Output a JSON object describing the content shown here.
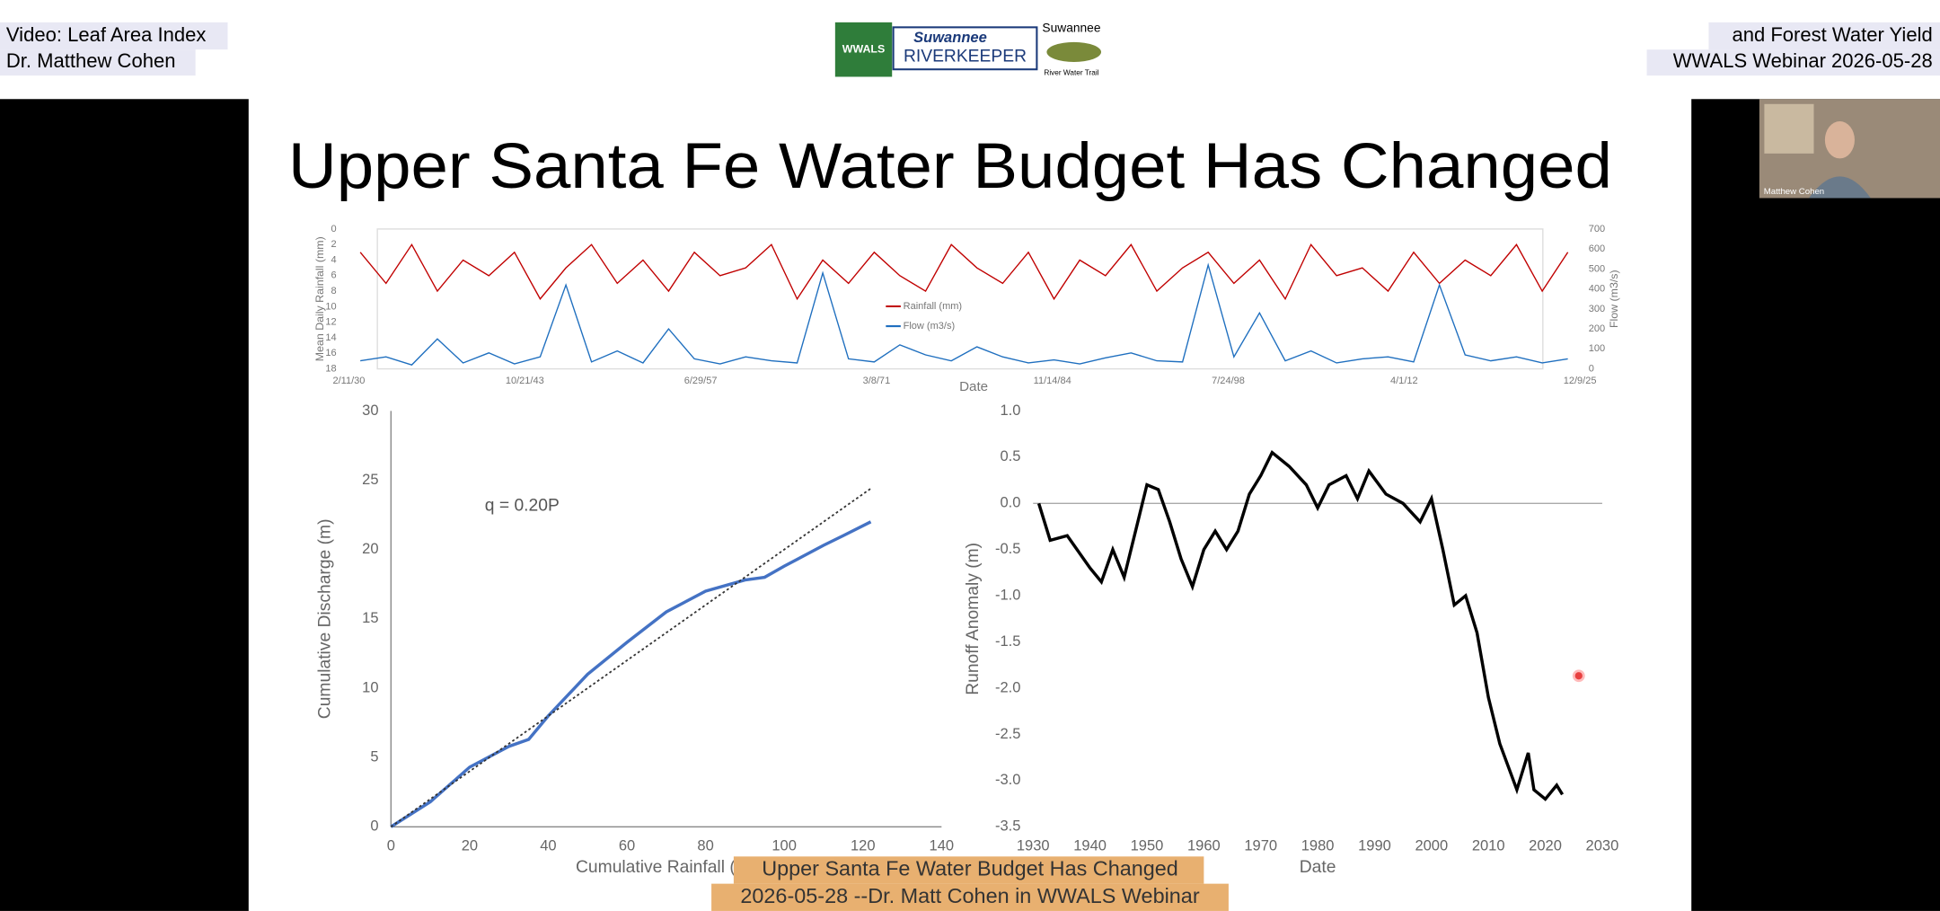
{
  "header": {
    "left": [
      "Video: Leaf Area Index",
      "Dr. Matthew Cohen"
    ],
    "right": [
      "and Forest Water Yield",
      "WWALS Webinar 2026-05-28"
    ],
    "logos": [
      "WWALS",
      "Suwannee",
      "RIVERKEEPER",
      "Suwannee",
      "River Water Trail"
    ]
  },
  "webcam": {
    "name": "Matthew Cohen"
  },
  "slide": {
    "title": "Upper Santa Fe Water Budget Has Changed"
  },
  "caption": [
    "Upper Santa Fe Water Budget Has Changed",
    "2026-05-28 --Dr. Matt Cohen in WWALS Webinar"
  ],
  "chart_data": [
    {
      "type": "line",
      "x_label": "Date",
      "y_label": "Mean Daily Rainfall (mm)",
      "y2_label": "Flow (m3/s)",
      "legend": "center",
      "x": [
        1931,
        1933,
        1935,
        1937,
        1939,
        1941,
        1943,
        1945,
        1947,
        1949,
        1951,
        1953,
        1955,
        1957,
        1959,
        1961,
        1963,
        1965,
        1967,
        1969,
        1971,
        1973,
        1975,
        1977,
        1979,
        1981,
        1983,
        1985,
        1987,
        1989,
        1991,
        1993,
        1995,
        1997,
        1999,
        2001,
        2003,
        2005,
        2007,
        2009,
        2011,
        2013,
        2015,
        2017,
        2019,
        2021,
        2023,
        2025
      ],
      "xlim": [
        1930.11,
        2025.94
      ],
      "xticks": [
        {
          "value": 1930.11,
          "label": "2/11/30"
        },
        {
          "value": 1943.8,
          "label": "10/21/43"
        },
        {
          "value": 1957.49,
          "label": "6/29/57"
        },
        {
          "value": 1971.18,
          "label": "3/8/71"
        },
        {
          "value": 1984.87,
          "label": "11/14/84"
        },
        {
          "value": 1998.56,
          "label": "7/24/98"
        },
        {
          "value": 2012.25,
          "label": "4/1/12"
        },
        {
          "value": 2025.94,
          "label": "12/9/25"
        }
      ],
      "ylim": [
        18,
        0
      ],
      "yticks": [
        0,
        2,
        4,
        6,
        8,
        10,
        12,
        14,
        16,
        18
      ],
      "y2lim": [
        0,
        700
      ],
      "y2ticks": [
        0,
        100,
        200,
        300,
        400,
        500,
        600,
        700
      ],
      "series": [
        {
          "name": "Rainfall (mm)",
          "color": "#c00000",
          "values": [
            3,
            7,
            2,
            8,
            4,
            6,
            3,
            9,
            5,
            2,
            7,
            4,
            8,
            3,
            6,
            5,
            2,
            9,
            4,
            7,
            3,
            6,
            8,
            2,
            5,
            7,
            3,
            9,
            4,
            6,
            2,
            8,
            5,
            3,
            7,
            4,
            9,
            2,
            6,
            5,
            8,
            3,
            7,
            4,
            6,
            2,
            8,
            3
          ]
        },
        {
          "name": "Flow (m3/s)",
          "color": "#1f6fbf",
          "axis": "y2",
          "values": [
            40,
            60,
            20,
            150,
            30,
            80,
            25,
            60,
            420,
            35,
            90,
            30,
            200,
            50,
            25,
            60,
            40,
            30,
            480,
            50,
            35,
            120,
            70,
            40,
            110,
            60,
            30,
            45,
            25,
            55,
            80,
            40,
            35,
            520,
            60,
            280,
            40,
            90,
            30,
            50,
            60,
            35,
            420,
            70,
            40,
            60,
            30,
            50
          ]
        }
      ]
    },
    {
      "type": "line",
      "x_label": "Cumulative Rainfall (m)",
      "y_label": "Cumulative Discharge (m)",
      "annotation": "q = 0.20P",
      "xlim": [
        0,
        140
      ],
      "xticks": [
        0,
        20,
        40,
        60,
        80,
        100,
        120,
        140
      ],
      "ylim": [
        0,
        30
      ],
      "yticks": [
        0,
        5,
        10,
        15,
        20,
        25,
        30
      ],
      "series": [
        {
          "color": "#4472c4",
          "x": [
            0,
            10,
            20,
            30,
            35,
            40,
            50,
            60,
            70,
            80,
            90,
            95,
            100,
            110,
            115,
            122
          ],
          "values": [
            0,
            1.8,
            4.3,
            5.8,
            6.3,
            8,
            11,
            13.3,
            15.5,
            17,
            17.8,
            18,
            18.8,
            20.3,
            21,
            22
          ]
        },
        {
          "color": "#333333",
          "dashed": true,
          "x": [
            0,
            122
          ],
          "values": [
            0,
            24.4
          ]
        }
      ]
    },
    {
      "type": "line",
      "x_label": "Date",
      "y_label": "Runoff Anomaly (m)",
      "zero_line": true,
      "xlim": [
        1930,
        2030
      ],
      "xticks": [
        1930,
        1940,
        1950,
        1960,
        1970,
        1980,
        1990,
        2000,
        2010,
        2020,
        2030
      ],
      "ylim": [
        -3.5,
        1
      ],
      "yticks": [
        {
          "value": 1,
          "label": "1.0"
        },
        0.5,
        {
          "value": 0,
          "label": "0.0"
        },
        -0.5,
        {
          "value": -1,
          "label": "-1.0"
        },
        -1.5,
        {
          "value": -2,
          "label": "-2.0"
        },
        -2.5,
        {
          "value": -3,
          "label": "-3.0"
        },
        -3.5
      ],
      "series": [
        {
          "color": "#000000",
          "x": [
            1931,
            1933,
            1936,
            1940,
            1942,
            1944,
            1946,
            1948,
            1950,
            1952,
            1954,
            1956,
            1958,
            1960,
            1962,
            1964,
            1966,
            1968,
            1970,
            1972,
            1975,
            1978,
            1980,
            1982,
            1985,
            1987,
            1989,
            1992,
            1995,
            1998,
            2000,
            2002,
            2004,
            2006,
            2008,
            2010,
            2012,
            2015,
            2017,
            2018,
            2020,
            2022,
            2023
          ],
          "values": [
            0,
            -0.4,
            -0.35,
            -0.7,
            -0.85,
            -0.5,
            -0.8,
            -0.3,
            0.2,
            0.15,
            -0.2,
            -0.6,
            -0.9,
            -0.5,
            -0.3,
            -0.5,
            -0.3,
            0.1,
            0.3,
            0.55,
            0.4,
            0.2,
            -0.05,
            0.2,
            0.3,
            0.05,
            0.35,
            0.1,
            0,
            -0.2,
            0.05,
            -0.5,
            -1.1,
            -1,
            -1.4,
            -2.1,
            -2.6,
            -3.1,
            -2.7,
            -3.1,
            -3.2,
            -3.05,
            -3.15
          ]
        }
      ]
    }
  ]
}
